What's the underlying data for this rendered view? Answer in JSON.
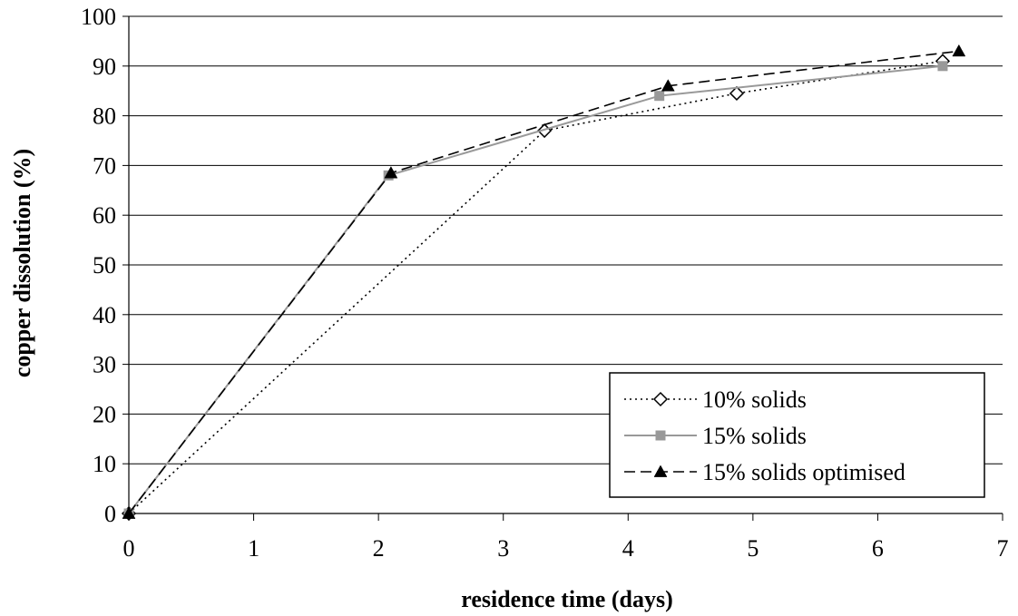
{
  "chart_data": {
    "type": "line",
    "title": "",
    "xlabel": "residence time (days)",
    "ylabel": "copper dissolution (%)",
    "xlim": [
      0,
      7
    ],
    "ylim": [
      0,
      100
    ],
    "x_ticks": [
      "0",
      "1",
      "2",
      "3",
      "4",
      "5",
      "6",
      "7"
    ],
    "y_ticks": [
      "0",
      "10",
      "20",
      "30",
      "40",
      "50",
      "60",
      "70",
      "80",
      "90",
      "100"
    ],
    "grid": "horizontal",
    "legend_position": "bottom-right",
    "series": [
      {
        "name": "10% solids",
        "marker": "open-diamond",
        "line_style": "dotted",
        "color": "#000000",
        "x": [
          0,
          3.33,
          4.87,
          6.52
        ],
        "y": [
          0,
          77,
          84.5,
          91
        ]
      },
      {
        "name": "15% solids",
        "marker": "square",
        "line_style": "solid",
        "color": "#999999",
        "x": [
          0,
          2.08,
          4.25,
          6.52
        ],
        "y": [
          0,
          68,
          84,
          90
        ]
      },
      {
        "name": "15% solids optimised",
        "marker": "triangle",
        "line_style": "dashed",
        "color": "#000000",
        "x": [
          0,
          2.1,
          4.32,
          6.65
        ],
        "y": [
          0,
          68.5,
          86,
          93
        ]
      }
    ]
  }
}
